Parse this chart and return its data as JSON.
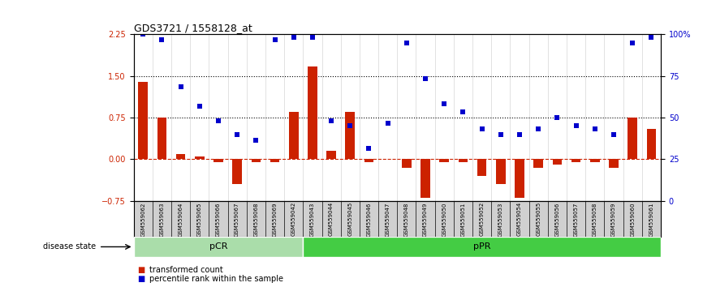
{
  "title": "GDS3721 / 1558128_at",
  "samples": [
    "GSM559062",
    "GSM559063",
    "GSM559064",
    "GSM559065",
    "GSM559066",
    "GSM559067",
    "GSM559068",
    "GSM559069",
    "GSM559042",
    "GSM559043",
    "GSM559044",
    "GSM559045",
    "GSM559046",
    "GSM559047",
    "GSM559048",
    "GSM559049",
    "GSM559050",
    "GSM559051",
    "GSM559052",
    "GSM559053",
    "GSM559054",
    "GSM559055",
    "GSM559056",
    "GSM559057",
    "GSM559058",
    "GSM559059",
    "GSM559060",
    "GSM559061"
  ],
  "red_bars": [
    1.4,
    0.75,
    0.1,
    0.05,
    -0.05,
    -0.45,
    -0.05,
    -0.05,
    0.85,
    1.67,
    0.15,
    0.85,
    -0.05,
    0.0,
    -0.15,
    -0.7,
    -0.05,
    -0.05,
    -0.3,
    -0.45,
    -0.7,
    -0.15,
    -0.1,
    -0.05,
    -0.05,
    -0.15,
    0.75,
    0.55
  ],
  "blue_dots": [
    2.25,
    2.15,
    1.3,
    0.95,
    0.7,
    0.45,
    0.35,
    2.15,
    2.2,
    2.2,
    0.7,
    0.6,
    0.2,
    0.65,
    2.1,
    1.45,
    1.0,
    0.85,
    0.55,
    0.45,
    0.45,
    0.55,
    0.75,
    0.6,
    0.55,
    0.45,
    2.1,
    2.2
  ],
  "pCR_count": 9,
  "pPR_count": 19,
  "ylim_left": [
    -0.75,
    2.25
  ],
  "ylim_right": [
    0,
    100
  ],
  "yticks_left": [
    -0.75,
    0,
    0.75,
    1.5,
    2.25
  ],
  "yticks_right": [
    0,
    25,
    50,
    75,
    100
  ],
  "hlines_dotted": [
    0.75,
    1.5
  ],
  "bar_color": "#cc2200",
  "dot_color": "#0000cc",
  "pCR_color": "#aaddaa",
  "pPR_color": "#44cc44",
  "label_color_left": "#cc2200",
  "label_color_right": "#0000cc",
  "bg_color": "#d0d0d0",
  "legend_bar_label": "transformed count",
  "legend_dot_label": "percentile rank within the sample",
  "disease_state_label": "disease state"
}
